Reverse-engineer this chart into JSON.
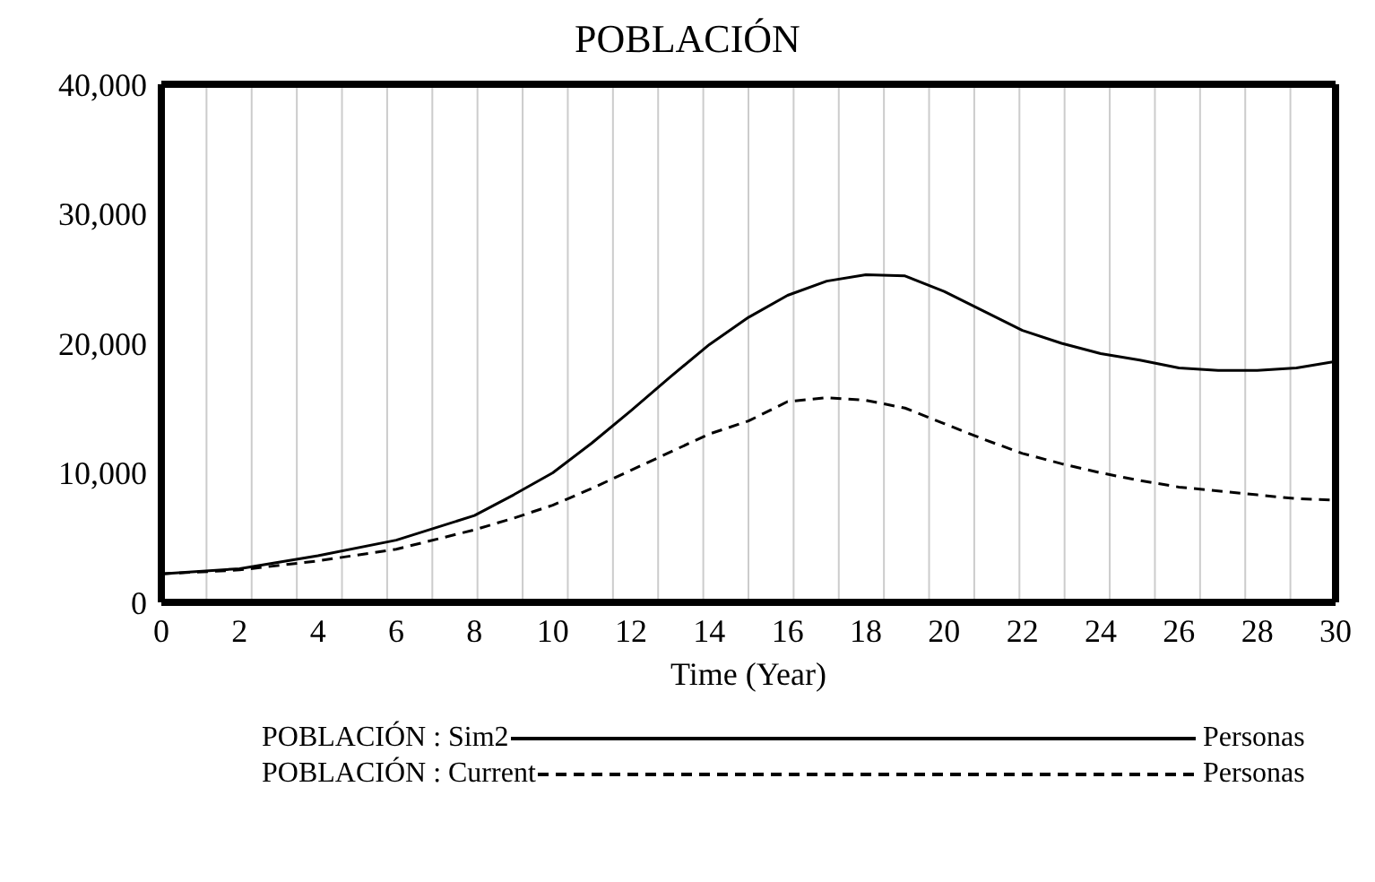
{
  "chart_data": {
    "type": "line",
    "title": "POBLACIÓN",
    "xlabel": "Time (Year)",
    "x": [
      0,
      2,
      4,
      6,
      8,
      9,
      10,
      11,
      12,
      13,
      14,
      15,
      16,
      17,
      18,
      19,
      20,
      21,
      22,
      23,
      24,
      25,
      26,
      27,
      28,
      29,
      30
    ],
    "series": [
      {
        "name": "POBLACIÓN : Sim2",
        "color": "#000000",
        "line_style": "solid",
        "values": [
          2200,
          2600,
          3600,
          4800,
          6700,
          8300,
          10000,
          12300,
          14800,
          17400,
          19900,
          22000,
          23700,
          24800,
          25300,
          25200,
          24000,
          22500,
          21000,
          20000,
          19200,
          18700,
          18100,
          17900,
          17900,
          18100,
          18600
        ]
      },
      {
        "name": "POBLACIÓN : Current",
        "color": "#000000",
        "line_style": "dashed",
        "values": [
          2200,
          2500,
          3200,
          4100,
          5600,
          6500,
          7500,
          8800,
          10200,
          11600,
          13000,
          14000,
          15500,
          15800,
          15600,
          15000,
          13800,
          12600,
          11500,
          10700,
          10000,
          9400,
          8900,
          8600,
          8300,
          8000,
          7900
        ]
      }
    ],
    "xlim": [
      0,
      30
    ],
    "xticks": [
      0,
      2,
      4,
      6,
      8,
      10,
      12,
      14,
      16,
      18,
      20,
      22,
      24,
      26,
      28,
      30
    ],
    "ylim": [
      0,
      40000
    ],
    "yticks": [
      {
        "value": 0,
        "label": "0"
      },
      {
        "value": 10000,
        "label": "10,000"
      },
      {
        "value": 20000,
        "label": "20,000"
      },
      {
        "value": 30000,
        "label": "30,000"
      },
      {
        "value": 40000,
        "label": "40,000"
      }
    ],
    "grid": true,
    "legend": "bottom",
    "marker": "none",
    "annotations": [
      "Personas",
      "Personas"
    ]
  }
}
